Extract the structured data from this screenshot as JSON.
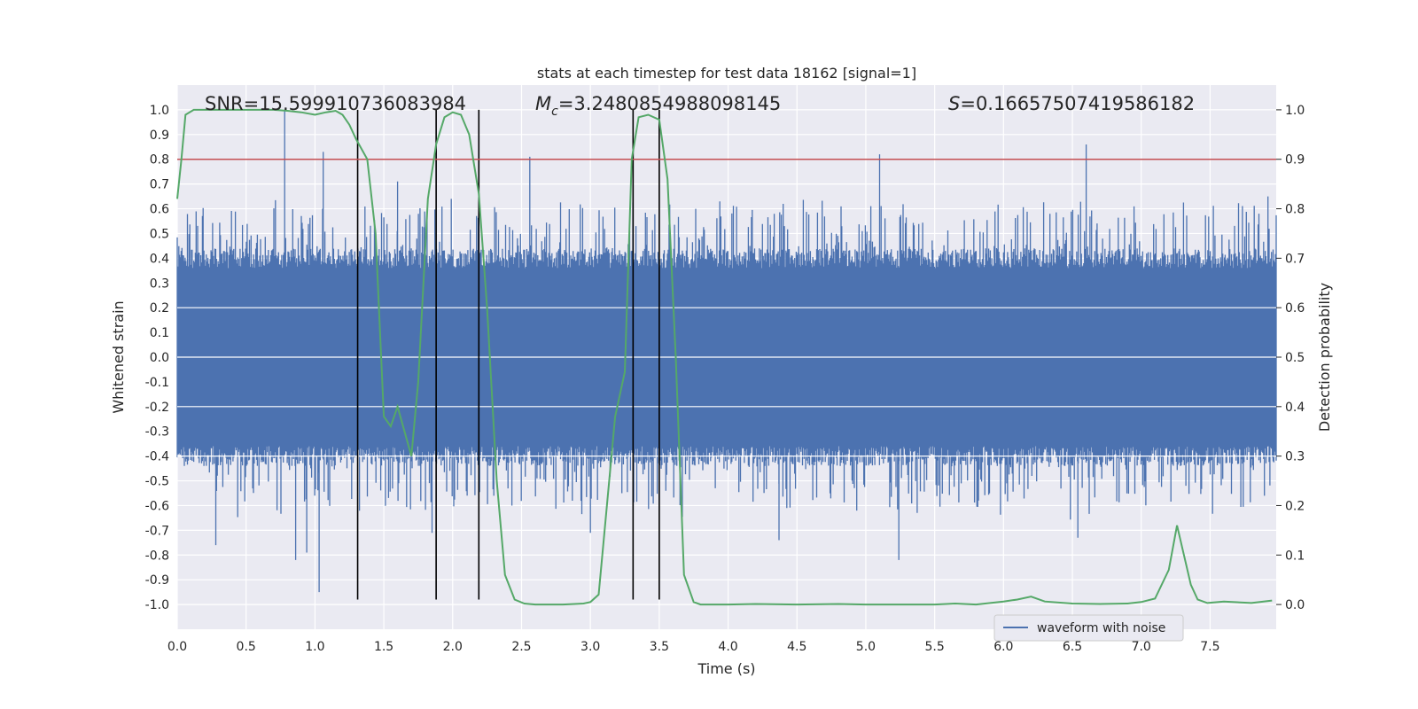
{
  "chart_data": {
    "type": "line",
    "title": "stats at each timestep for test data 18162 [signal=1]",
    "xlabel": "Time (s)",
    "ylabel": "Whitened strain",
    "ylabel_right": "Detection probability",
    "xlim": [
      0.0,
      7.98
    ],
    "ylim": [
      -1.1,
      1.1
    ],
    "ylim_right": [
      -0.05,
      1.05
    ],
    "xticks": [
      0.0,
      0.5,
      1.0,
      1.5,
      2.0,
      2.5,
      3.0,
      3.5,
      4.0,
      4.5,
      5.0,
      5.5,
      6.0,
      6.5,
      7.0,
      7.5
    ],
    "xtick_labels": [
      "0.0",
      "0.5",
      "1.0",
      "1.5",
      "2.0",
      "2.5",
      "3.0",
      "3.5",
      "4.0",
      "4.5",
      "5.0",
      "5.5",
      "6.0",
      "6.5",
      "7.0",
      "7.5"
    ],
    "yticks": [
      1.0,
      0.9,
      0.8,
      0.7,
      0.6,
      0.5,
      0.4,
      0.3,
      0.2,
      0.1,
      0.0,
      -0.1,
      -0.2,
      -0.3,
      -0.4,
      -0.5,
      -0.6,
      -0.7,
      -0.8,
      -0.9,
      -1.0
    ],
    "ytick_labels": [
      "1.0",
      "0.9",
      "0.8",
      "0.7",
      "0.6",
      "0.5",
      "0.4",
      "0.3",
      "0.2",
      "0.1",
      "0.0",
      "-0.1",
      "-0.2",
      "-0.3",
      "-0.4",
      "-0.5",
      "-0.6",
      "-0.7",
      "-0.8",
      "-0.9",
      "-1.0"
    ],
    "yticks_right": [
      1.0,
      0.9,
      0.8,
      0.7,
      0.6,
      0.5,
      0.4,
      0.3,
      0.2,
      0.1,
      0.0
    ],
    "ytick_labels_right": [
      "1.0",
      "0.9",
      "0.8",
      "0.7",
      "0.6",
      "0.5",
      "0.4",
      "0.3",
      "0.2",
      "0.1",
      "0.0"
    ],
    "annotations": {
      "snr": "SNR=15.599910736083984",
      "mc_symbol": "M",
      "mc_sub": "c",
      "mc_value": "=3.2480854988098145",
      "s_symbol": "S",
      "s_value": "=0.16657507419586182"
    },
    "legend": {
      "label": "waveform with noise",
      "position": "lower-center-right"
    },
    "threshold": {
      "value": 0.9,
      "axis": "right",
      "color": "#c44e52"
    },
    "vertical_markers": [
      1.31,
      1.88,
      2.19,
      3.31,
      3.5
    ],
    "waveform": {
      "name": "waveform with noise",
      "axis": "left",
      "color": "#4c72b0",
      "x_range": [
        0.0,
        7.98
      ],
      "band": 0.36,
      "peaks": [
        {
          "x": 0.78,
          "y": 1.0
        },
        {
          "x": 1.06,
          "y": 0.83
        },
        {
          "x": 1.6,
          "y": 0.71
        },
        {
          "x": 1.99,
          "y": 0.64
        },
        {
          "x": 2.56,
          "y": 0.81
        },
        {
          "x": 5.1,
          "y": 0.82
        },
        {
          "x": 6.6,
          "y": 0.86
        },
        {
          "x": 7.92,
          "y": 0.65
        },
        {
          "x": 3.94,
          "y": 0.63
        },
        {
          "x": 4.4,
          "y": 0.62
        }
      ],
      "troughs": [
        {
          "x": 1.03,
          "y": -0.95
        },
        {
          "x": 0.86,
          "y": -0.82
        },
        {
          "x": 0.28,
          "y": -0.76
        },
        {
          "x": 0.94,
          "y": -0.79
        },
        {
          "x": 5.24,
          "y": -0.82
        },
        {
          "x": 3.0,
          "y": -0.71
        },
        {
          "x": 1.85,
          "y": -0.71
        },
        {
          "x": 4.37,
          "y": -0.74
        },
        {
          "x": 6.54,
          "y": -0.73
        }
      ]
    },
    "series": [
      {
        "name": "detection probability",
        "axis": "right",
        "color": "#55a868",
        "x": [
          0.0,
          0.03,
          0.06,
          0.12,
          0.2,
          0.3,
          0.4,
          0.5,
          0.6,
          0.7,
          0.8,
          0.9,
          1.0,
          1.08,
          1.15,
          1.2,
          1.25,
          1.3,
          1.38,
          1.44,
          1.5,
          1.55,
          1.6,
          1.65,
          1.7,
          1.75,
          1.82,
          1.88,
          1.94,
          2.0,
          2.06,
          2.12,
          2.19,
          2.25,
          2.32,
          2.38,
          2.45,
          2.52,
          2.6,
          2.8,
          2.95,
          3.0,
          3.06,
          3.12,
          3.18,
          3.25,
          3.3,
          3.35,
          3.42,
          3.5,
          3.56,
          3.62,
          3.68,
          3.75,
          3.8,
          4.0,
          4.2,
          4.5,
          4.8,
          5.0,
          5.2,
          5.5,
          5.65,
          5.8,
          6.0,
          6.1,
          6.2,
          6.3,
          6.5,
          6.7,
          6.9,
          7.0,
          7.1,
          7.2,
          7.26,
          7.31,
          7.36,
          7.41,
          7.48,
          7.6,
          7.8,
          7.95
        ],
        "values": [
          0.82,
          0.9,
          0.99,
          1.0,
          1.0,
          1.0,
          1.0,
          1.0,
          1.0,
          1.0,
          0.998,
          0.995,
          0.99,
          0.995,
          0.998,
          0.99,
          0.97,
          0.94,
          0.9,
          0.75,
          0.38,
          0.36,
          0.4,
          0.35,
          0.3,
          0.45,
          0.82,
          0.93,
          0.985,
          0.995,
          0.99,
          0.95,
          0.83,
          0.6,
          0.25,
          0.06,
          0.01,
          0.002,
          0.0,
          0.0,
          0.002,
          0.005,
          0.02,
          0.2,
          0.38,
          0.47,
          0.9,
          0.985,
          0.99,
          0.98,
          0.86,
          0.5,
          0.06,
          0.005,
          0.0,
          0.0,
          0.001,
          0.0,
          0.001,
          0.0,
          0.0,
          0.0,
          0.002,
          0.0,
          0.006,
          0.01,
          0.016,
          0.006,
          0.002,
          0.001,
          0.002,
          0.005,
          0.012,
          0.07,
          0.16,
          0.1,
          0.04,
          0.01,
          0.003,
          0.006,
          0.003,
          0.008
        ]
      }
    ]
  }
}
